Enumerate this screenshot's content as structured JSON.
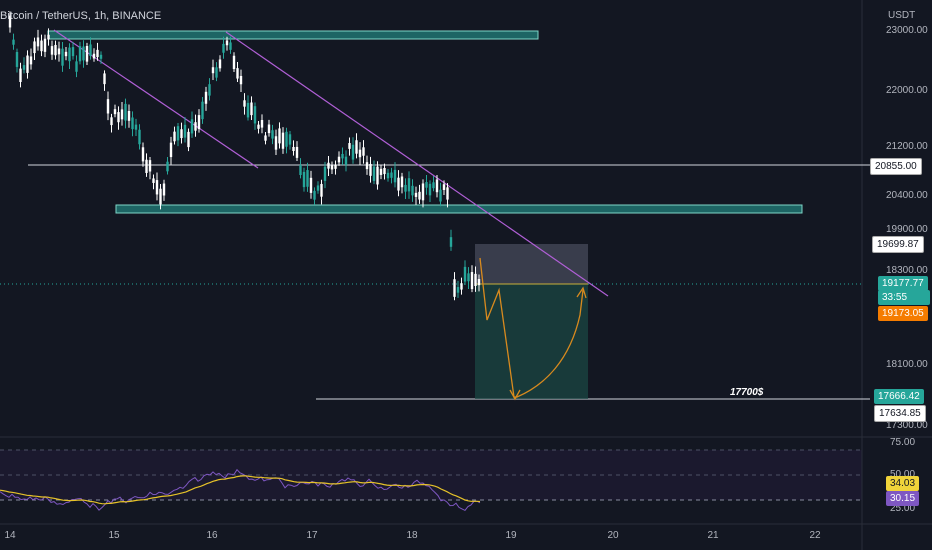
{
  "header": {
    "title": "Bitcoin / TetherUS, 1h, BINANCE"
  },
  "price_axis": {
    "unit": "USDT",
    "ticks": [
      "23000.00",
      "22000.00",
      "21200.00",
      "20400.00",
      "19900.00",
      "18300.00",
      "18100.00",
      "17300.00"
    ]
  },
  "rsi_axis": {
    "ticks": [
      "75.00",
      "50.00",
      "25.00"
    ]
  },
  "time_axis": {
    "ticks": [
      "14",
      "15",
      "16",
      "17",
      "18",
      "19",
      "20",
      "21",
      "22"
    ]
  },
  "labels": {
    "level_20855": "20855.00",
    "level_19699": "19699.87",
    "last_price": "19177.77",
    "countdown": "33:55",
    "orange_price": "19173.05",
    "target_price": "17666.42",
    "level_17634": "17634.85",
    "rsi_ma": "34.03",
    "rsi_value": "30.15"
  },
  "annotations": {
    "target_note": "17700$"
  },
  "colors": {
    "background": "#131722",
    "candle_up": "#26a69a",
    "candle_down": "#ffffff",
    "zone": "#26a69a",
    "trendline": "#b05fd6",
    "projection": "#d88a1e",
    "rsi_line": "#7e57c2",
    "rsi_ma": "#e6c229",
    "last_price_tag": "#26a69a",
    "orange_tag": "#f57c00"
  }
}
